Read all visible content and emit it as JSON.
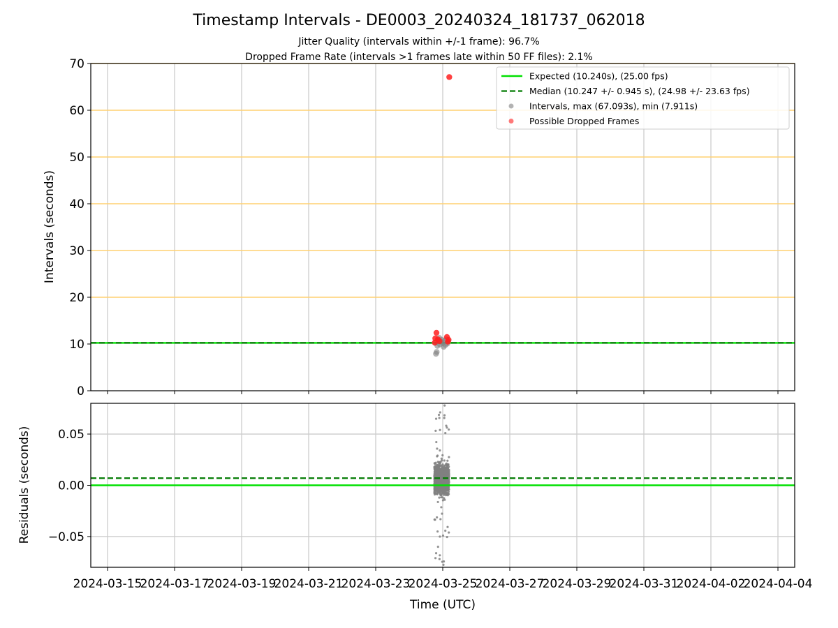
{
  "figure": {
    "title": "Timestamp Intervals - DE0003_20240324_181737_062018",
    "subtitle_1": "Jitter Quality (intervals within +/-1 frame): 96.7%",
    "subtitle_2": "Dropped Frame Rate (intervals >1 frames late within 50 FF files): 2.1%",
    "xlabel": "Time (UTC)"
  },
  "colors": {
    "expected": "#00e000",
    "median": "#007a00",
    "intervals": "#808080",
    "dropped": "#ff2020",
    "threshold_lines": "#ffd070",
    "grid": "#cccccc"
  },
  "chart_data": [
    {
      "type": "scatter",
      "name": "intervals-panel",
      "ylabel": "Intervals (seconds)",
      "ylim": [
        0,
        70
      ],
      "yticks": [
        0,
        10,
        20,
        30,
        40,
        50,
        60,
        70
      ],
      "x_ticks": [
        "2024-03-15",
        "2024-03-17",
        "2024-03-19",
        "2024-03-21",
        "2024-03-23",
        "2024-03-25",
        "2024-03-27",
        "2024-03-29",
        "2024-03-31",
        "2024-04-02",
        "2024-04-04"
      ],
      "xlim": [
        "2024-03-14T12:00",
        "2024-04-04T12:00"
      ],
      "grid": "vertical",
      "horizontal_lines": [
        20,
        30,
        40,
        50,
        60,
        70
      ],
      "expected": 10.24,
      "median": 10.247,
      "legend_position": "top-right",
      "legend": [
        {
          "label": "Expected (10.240s), (25.00 fps)",
          "style": "line",
          "color": "#00e000"
        },
        {
          "label": "Median (10.247 +/- 0.945 s), (24.98 +/- 23.63 fps)",
          "style": "dashed",
          "color": "#007a00"
        },
        {
          "label": "Intervals, max (67.093s), min (7.911s)",
          "style": "marker",
          "color": "#808080"
        },
        {
          "label": "Possible Dropped Frames",
          "style": "marker",
          "color": "#ff2020"
        }
      ],
      "series": [
        {
          "name": "Intervals",
          "points": [
            [
              "2024-03-24T18:30",
              10.24
            ],
            [
              "2024-03-24T19:10",
              7.911
            ],
            [
              "2024-03-24T19:40",
              8.3
            ],
            [
              "2024-03-24T20:10",
              9.6
            ],
            [
              "2024-03-24T20:50",
              10.8
            ],
            [
              "2024-03-24T21:30",
              11.3
            ],
            [
              "2024-03-24T22:00",
              9.9
            ],
            [
              "2024-03-24T22:40",
              10.5
            ],
            [
              "2024-03-24T23:20",
              10.9
            ],
            [
              "2024-03-25T00:00",
              10.2
            ],
            [
              "2024-03-25T00:40",
              9.4
            ],
            [
              "2024-03-25T01:20",
              10.7
            ],
            [
              "2024-03-25T02:00",
              9.8
            ],
            [
              "2024-03-25T02:40",
              11.0
            ],
            [
              "2024-03-25T03:20",
              10.1
            ],
            [
              "2024-03-25T04:00",
              10.6
            ]
          ]
        },
        {
          "name": "Possible Dropped Frames",
          "points": [
            [
              "2024-03-24T18:20",
              10.3
            ],
            [
              "2024-03-24T18:40",
              11.2
            ],
            [
              "2024-03-24T19:30",
              12.4
            ],
            [
              "2024-03-24T20:30",
              11.0
            ],
            [
              "2024-03-24T21:40",
              10.6
            ],
            [
              "2024-03-25T03:00",
              11.5
            ],
            [
              "2024-03-25T03:40",
              10.5
            ],
            [
              "2024-03-25T04:10",
              10.9
            ],
            [
              "2024-03-25T04:40",
              67.093
            ]
          ]
        }
      ]
    },
    {
      "type": "scatter",
      "name": "residuals-panel",
      "ylabel": "Residuals (seconds)",
      "ylim": [
        -0.08,
        0.08
      ],
      "yticks": [
        -0.05,
        0.0,
        0.05
      ],
      "ytick_labels": [
        "−0.05",
        "0.00",
        "0.05"
      ],
      "grid": "both",
      "expected": 0.0,
      "median": 0.007,
      "residual_range": [
        -0.078,
        0.079
      ],
      "time_range": [
        "2024-03-24T18:00",
        "2024-03-25T04:30"
      ]
    }
  ]
}
